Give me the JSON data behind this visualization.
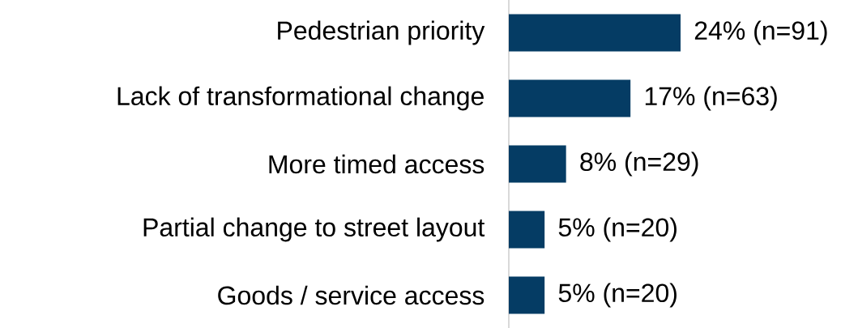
{
  "chart_data": {
    "type": "bar",
    "orientation": "horizontal",
    "categories": [
      "Pedestrian priority",
      "Lack of transformational change",
      "More timed access",
      "Partial change to street layout",
      "Goods / service access"
    ],
    "values": [
      24,
      17,
      8,
      5,
      5
    ],
    "value_labels": [
      "24% (n=91)",
      "17% (n=63)",
      "8% (n=29)",
      "5% (n=20)",
      "5% (n=20)"
    ],
    "color": "#053c64"
  }
}
